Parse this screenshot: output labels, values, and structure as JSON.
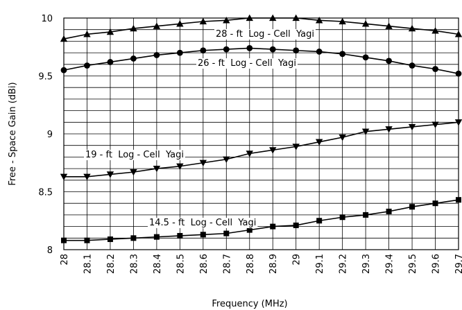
{
  "chart_data": {
    "type": "line",
    "title": "",
    "xlabel": "Frequency (MHz)",
    "ylabel": "Free - Space Gain (dBi)",
    "x": [
      28,
      28.1,
      28.2,
      28.3,
      28.4,
      28.5,
      28.6,
      28.7,
      28.8,
      28.9,
      29,
      29.1,
      29.2,
      29.3,
      29.4,
      29.5,
      29.6,
      29.7
    ],
    "x_tick_labels": [
      "28",
      "28.1",
      "28.2",
      "28.3",
      "28.4",
      "28.5",
      "28.6",
      "28.7",
      "28.8",
      "28.9",
      "29",
      "29.1",
      "29.2",
      "29.3",
      "29.4",
      "29.5",
      "29.6",
      "29.7"
    ],
    "y_tick_labels": [
      "8",
      "8.5",
      "9",
      "9.5",
      "10"
    ],
    "y_ticks": [
      8,
      8.5,
      9,
      9.5,
      10
    ],
    "xlim": [
      28,
      29.7
    ],
    "ylim": [
      8,
      10
    ],
    "grid": true,
    "legend": "none",
    "series": [
      {
        "name": "28 - ft  Log - Cell  Yagi",
        "marker": "triangle-up",
        "values": [
          9.82,
          9.86,
          9.88,
          9.91,
          9.93,
          9.95,
          9.97,
          9.98,
          10.0,
          10.0,
          10.0,
          9.98,
          9.97,
          9.95,
          9.93,
          9.91,
          9.89,
          9.86
        ]
      },
      {
        "name": "26 - ft  Log - Cell  Yagi",
        "marker": "circle",
        "values": [
          9.55,
          9.59,
          9.62,
          9.65,
          9.68,
          9.7,
          9.72,
          9.73,
          9.74,
          9.73,
          9.72,
          9.71,
          9.69,
          9.66,
          9.63,
          9.59,
          9.56,
          9.52
        ]
      },
      {
        "name": "19 - ft  Log - Cell  Yagi",
        "marker": "triangle-down",
        "values": [
          8.63,
          8.63,
          8.65,
          8.67,
          8.7,
          8.72,
          8.75,
          8.78,
          8.83,
          8.86,
          8.89,
          8.93,
          8.97,
          9.02,
          9.04,
          9.06,
          9.08,
          9.1
        ]
      },
      {
        "name": "14.5 - ft  Log - Cell  Yagi",
        "marker": "square",
        "values": [
          8.08,
          8.08,
          8.09,
          8.1,
          8.11,
          8.12,
          8.13,
          8.14,
          8.17,
          8.2,
          8.21,
          8.25,
          8.28,
          8.3,
          8.33,
          8.37,
          8.4,
          8.43
        ]
      }
    ]
  }
}
